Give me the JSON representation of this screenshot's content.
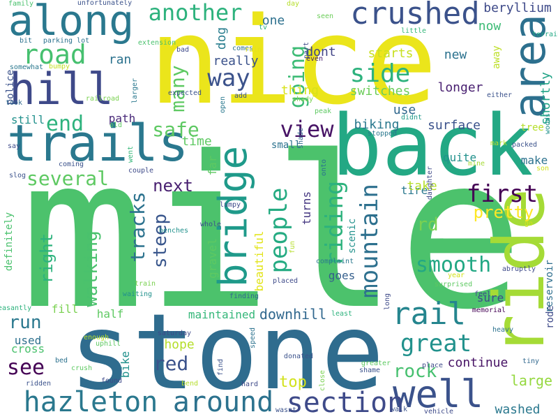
{
  "words": [
    {
      "t": "mile",
      "c": "#4cc26c"
    },
    {
      "t": "nice",
      "c": "#ebe51b"
    },
    {
      "t": "stone",
      "c": "#2f6c8e"
    },
    {
      "t": "back",
      "c": "#23a884"
    },
    {
      "t": "ride",
      "c": "#a5db36"
    },
    {
      "t": "trails",
      "c": "#2a788e"
    },
    {
      "t": "along",
      "c": "#2a788e"
    },
    {
      "t": "hill",
      "c": "#3e4989"
    },
    {
      "t": "area",
      "c": "#2d708e"
    },
    {
      "t": "well",
      "c": "#3b528b"
    },
    {
      "t": "bridge",
      "c": "#1f9a8a"
    },
    {
      "t": "crushed",
      "c": "#3b528b"
    },
    {
      "t": "hazleton",
      "c": "#2a788e"
    },
    {
      "t": "around",
      "c": "#2c728e"
    },
    {
      "t": "section",
      "c": "#3e4a89"
    },
    {
      "t": "rail",
      "c": "#25858e"
    },
    {
      "t": "great",
      "c": "#21918c"
    },
    {
      "t": "road",
      "c": "#46c06f"
    },
    {
      "t": "another",
      "c": "#2db27d"
    },
    {
      "t": "side",
      "c": "#2db27d"
    },
    {
      "t": "people",
      "c": "#25ab82"
    },
    {
      "t": "riding",
      "c": "#2db27d"
    },
    {
      "t": "mountain",
      "c": "#2d708e"
    },
    {
      "t": "first",
      "c": "#440154"
    },
    {
      "t": "view",
      "c": "#471365"
    },
    {
      "t": "way",
      "c": "#3b528b"
    },
    {
      "t": "end",
      "c": "#2db27d"
    },
    {
      "t": "several",
      "c": "#5ec962"
    },
    {
      "t": "safe",
      "c": "#5ec962"
    },
    {
      "t": "tracks",
      "c": "#2c728e"
    },
    {
      "t": "going",
      "c": "#3cbb75"
    },
    {
      "t": "smooth",
      "c": "#22a884"
    },
    {
      "t": "pretty",
      "c": "#fde725"
    },
    {
      "t": "rd",
      "c": "#7ad151"
    },
    {
      "t": "rock",
      "c": "#46c06f"
    },
    {
      "t": "see",
      "c": "#440154"
    },
    {
      "t": "run",
      "c": "#2a788e"
    },
    {
      "t": "red",
      "c": "#3b528b"
    },
    {
      "t": "walking",
      "c": "#4ac16d"
    },
    {
      "t": "steep",
      "c": "#39568c"
    },
    {
      "t": "many",
      "c": "#5ec962"
    },
    {
      "t": "next",
      "c": "#481f70"
    },
    {
      "t": "right",
      "c": "#2db27d"
    },
    {
      "t": "top",
      "c": "#d2e21b"
    },
    {
      "t": "large",
      "c": "#95d840"
    },
    {
      "t": "continue",
      "c": "#471365"
    },
    {
      "t": "washed",
      "c": "#2a788e"
    },
    {
      "t": "downhill",
      "c": "#31688e"
    },
    {
      "t": "hope",
      "c": "#b5de2b"
    },
    {
      "t": "maintained",
      "c": "#35b779"
    },
    {
      "t": "surface",
      "c": "#3b528b"
    },
    {
      "t": "beryllium",
      "c": "#3e4a89"
    },
    {
      "t": "now",
      "c": "#3cbb75"
    },
    {
      "t": "new",
      "c": "#2c728e"
    },
    {
      "t": "shortly",
      "c": "#20a386"
    },
    {
      "t": "longer",
      "c": "#481f70"
    },
    {
      "t": "switches",
      "c": "#6ccd5a"
    },
    {
      "t": "starts",
      "c": "#c8e020"
    },
    {
      "t": "thing",
      "c": "#d8e219"
    },
    {
      "t": "dont",
      "c": "#414487"
    },
    {
      "t": "really",
      "c": "#3b528b"
    },
    {
      "t": "dog",
      "c": "#287d8e"
    },
    {
      "t": "ran",
      "c": "#2c728e"
    },
    {
      "t": "one",
      "c": "#2d708e"
    },
    {
      "t": "use",
      "c": "#31688e"
    },
    {
      "t": "biking",
      "c": "#2a788e"
    },
    {
      "t": "time",
      "c": "#5ec962"
    },
    {
      "t": "path",
      "c": "#482878"
    },
    {
      "t": "still",
      "c": "#21918c"
    },
    {
      "t": "small",
      "c": "#2c728e"
    },
    {
      "t": "far",
      "c": "#5ec962"
    },
    {
      "t": "turns",
      "c": "#453781"
    },
    {
      "t": "tire",
      "c": "#2a788e"
    },
    {
      "t": "take",
      "c": "#b5de2b"
    },
    {
      "t": "scenic",
      "c": "#21918c"
    },
    {
      "t": "goes",
      "c": "#355f8d"
    },
    {
      "t": "beautiful",
      "c": "#e2e418"
    },
    {
      "t": "gravel",
      "c": "#5ec962"
    },
    {
      "t": "sure",
      "c": "#3e4a89"
    },
    {
      "t": "half",
      "c": "#5ec962"
    },
    {
      "t": "fill",
      "c": "#7ad151"
    },
    {
      "t": "used",
      "c": "#2d708e"
    },
    {
      "t": "cross",
      "c": "#4ac16d"
    },
    {
      "t": "bike",
      "c": "#21918c"
    },
    {
      "t": "definitely",
      "c": "#4ac16d"
    },
    {
      "t": "police",
      "c": "#3b528b"
    },
    {
      "t": "quite",
      "c": "#21918c"
    },
    {
      "t": "make",
      "c": "#2c728e"
    },
    {
      "t": "tree",
      "c": "#b5de2b"
    },
    {
      "t": "away",
      "c": "#bddf26"
    },
    {
      "t": "rode",
      "c": "#3e4a89"
    },
    {
      "t": "reservoir",
      "c": "#2e6e8e"
    },
    {
      "t": "family",
      "c": "#4ac16d"
    },
    {
      "t": "unfortunately",
      "c": "#3b528b"
    },
    {
      "t": "day",
      "c": "#b5de2b"
    },
    {
      "t": "seen",
      "c": "#6ccd5a"
    },
    {
      "t": "tv",
      "c": "#29af7f"
    },
    {
      "t": "terrain",
      "c": "#22a884"
    },
    {
      "t": "bit",
      "c": "#2c728e"
    },
    {
      "t": "parking lot",
      "c": "#2c728e"
    },
    {
      "t": "extension",
      "c": "#4ac16d"
    },
    {
      "t": "comes",
      "c": "#2d708e"
    },
    {
      "t": "even",
      "c": "#481f70"
    },
    {
      "t": "little",
      "c": "#35b779"
    },
    {
      "t": "somewhat",
      "c": "#2a788e"
    },
    {
      "t": "bumpy",
      "c": "#c2df23"
    },
    {
      "t": "bad",
      "c": "#3e4a89"
    },
    {
      "t": "ruin",
      "c": "#e5e419"
    },
    {
      "t": "part",
      "c": "#3e4a89"
    },
    {
      "t": "took",
      "c": "#31688e"
    },
    {
      "t": "railroad",
      "c": "#7ad151"
    },
    {
      "t": "larger",
      "c": "#2a788e"
    },
    {
      "t": "expected",
      "c": "#3b528b"
    },
    {
      "t": "add",
      "c": "#3b528b"
    },
    {
      "t": "shady",
      "c": "#7ad151"
    },
    {
      "t": "open",
      "c": "#2a788e"
    },
    {
      "t": "either",
      "c": "#3b528b"
    },
    {
      "t": "peak",
      "c": "#5ec962"
    },
    {
      "t": "didnt",
      "c": "#1f9a8a"
    },
    {
      "t": "woods",
      "c": "#21918c"
    },
    {
      "t": "say",
      "c": "#3e4a89"
    },
    {
      "t": "old",
      "c": "#5ec962"
    },
    {
      "t": "stopped",
      "c": "#2a788e"
    },
    {
      "t": "mark",
      "c": "#b5de2b"
    },
    {
      "t": "packed",
      "c": "#3b528b"
    },
    {
      "t": "shade",
      "c": "#31688e"
    },
    {
      "t": "went",
      "c": "#35b779"
    },
    {
      "t": "coming",
      "c": "#3b528b"
    },
    {
      "t": "couple",
      "c": "#3e4a89"
    },
    {
      "t": "onto",
      "c": "#2c728e"
    },
    {
      "t": "mine",
      "c": "#a5db36"
    },
    {
      "t": "son",
      "c": "#d2e21b"
    },
    {
      "t": "slog",
      "c": "#3b528b"
    },
    {
      "t": "whole",
      "c": "#3b528b"
    },
    {
      "t": "lumpy",
      "c": "#3e4a89"
    },
    {
      "t": "daughter",
      "c": "#3e4a89"
    },
    {
      "t": "go",
      "c": "#d2e21b"
    },
    {
      "t": "benches",
      "c": "#21918c"
    },
    {
      "t": "fun",
      "c": "#b5de2b"
    },
    {
      "t": "complaint",
      "c": "#2a788e"
    },
    {
      "t": "abruptly",
      "c": "#3e4a89"
    },
    {
      "t": "year",
      "c": "#d2e21b"
    },
    {
      "t": "placed",
      "c": "#3e4a89"
    },
    {
      "t": "surprised",
      "c": "#5ec962"
    },
    {
      "t": "train",
      "c": "#7ad151"
    },
    {
      "t": "waiting",
      "c": "#21918c"
    },
    {
      "t": "finding",
      "c": "#31688e"
    },
    {
      "t": "long",
      "c": "#3e4a89"
    },
    {
      "t": "feel",
      "c": "#3e4a89"
    },
    {
      "t": "pleasantly",
      "c": "#2db27d"
    },
    {
      "t": "least",
      "c": "#2db27d"
    },
    {
      "t": "memorial",
      "c": "#440154"
    },
    {
      "t": "heavy",
      "c": "#2c728e"
    },
    {
      "t": "saturday",
      "c": "#3e4a89"
    },
    {
      "t": "enough",
      "c": "#b5de2b"
    },
    {
      "t": "uphill",
      "c": "#5ec962"
    },
    {
      "t": "bed",
      "c": "#2c728e"
    },
    {
      "t": "crush",
      "c": "#5ec962"
    },
    {
      "t": "found",
      "c": "#3e4a89"
    },
    {
      "t": "ridden",
      "c": "#3b528b"
    },
    {
      "t": "find",
      "c": "#3b528b"
    },
    {
      "t": "speed",
      "c": "#2c728e"
    },
    {
      "t": "bend",
      "c": "#b5de2b"
    },
    {
      "t": "hard",
      "c": "#3e4a89"
    },
    {
      "t": "donated",
      "c": "#3b528b"
    },
    {
      "t": "greater",
      "c": "#5ec962"
    },
    {
      "t": "shame",
      "c": "#3b528b"
    },
    {
      "t": "close",
      "c": "#7ad151"
    },
    {
      "t": "place",
      "c": "#3e4a89"
    },
    {
      "t": "tiny",
      "c": "#31688e"
    },
    {
      "t": "wasnt",
      "c": "#3b528b"
    },
    {
      "t": "walk",
      "c": "#3b528b"
    },
    {
      "t": "vehicle",
      "c": "#3e4a89"
    }
  ]
}
